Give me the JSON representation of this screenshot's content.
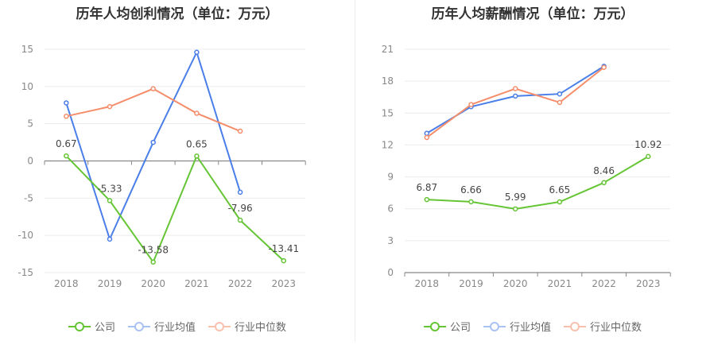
{
  "colors": {
    "company": "#65c535",
    "industry_avg": "#4a7ee8",
    "industry_median": "#f58d6b"
  },
  "legend": {
    "company": "公司",
    "industry_avg": "行业均值",
    "industry_median": "行业中位数"
  },
  "chart_data": [
    {
      "type": "line",
      "title": "历年人均创利情况（单位：万元）",
      "categories": [
        "2018",
        "2019",
        "2020",
        "2021",
        "2022",
        "2023"
      ],
      "ylim": [
        -15,
        15
      ],
      "yticks": [
        15,
        10,
        5,
        0,
        -5,
        -10,
        -15
      ],
      "series": [
        {
          "name": "公司",
          "key": "company",
          "values": [
            0.67,
            -5.33,
            -13.58,
            0.65,
            -7.96,
            -13.41
          ],
          "labels": [
            "0.67",
            "-5.33",
            "-13.58",
            "0.65",
            "-7.96",
            "-13.41"
          ]
        },
        {
          "name": "行业均值",
          "key": "industry_avg",
          "values": [
            7.8,
            -10.5,
            2.5,
            14.6,
            -4.2,
            null
          ]
        },
        {
          "name": "行业中位数",
          "key": "industry_median",
          "values": [
            6.0,
            7.3,
            9.7,
            6.4,
            4.0,
            null
          ]
        }
      ]
    },
    {
      "type": "line",
      "title": "历年人均薪酬情况（单位：万元）",
      "categories": [
        "2018",
        "2019",
        "2020",
        "2021",
        "2022",
        "2023"
      ],
      "ylim": [
        0,
        21
      ],
      "yticks": [
        21,
        18,
        15,
        12,
        9,
        6,
        3,
        0
      ],
      "series": [
        {
          "name": "公司",
          "key": "company",
          "values": [
            6.87,
            6.66,
            5.99,
            6.65,
            8.46,
            10.92
          ],
          "labels": [
            "6.87",
            "6.66",
            "5.99",
            "6.65",
            "8.46",
            "10.92"
          ]
        },
        {
          "name": "行业均值",
          "key": "industry_avg",
          "values": [
            13.1,
            15.6,
            16.6,
            16.8,
            19.4,
            null
          ]
        },
        {
          "name": "行业中位数",
          "key": "industry_median",
          "values": [
            12.7,
            15.8,
            17.3,
            16.0,
            19.3,
            null
          ]
        }
      ]
    }
  ]
}
